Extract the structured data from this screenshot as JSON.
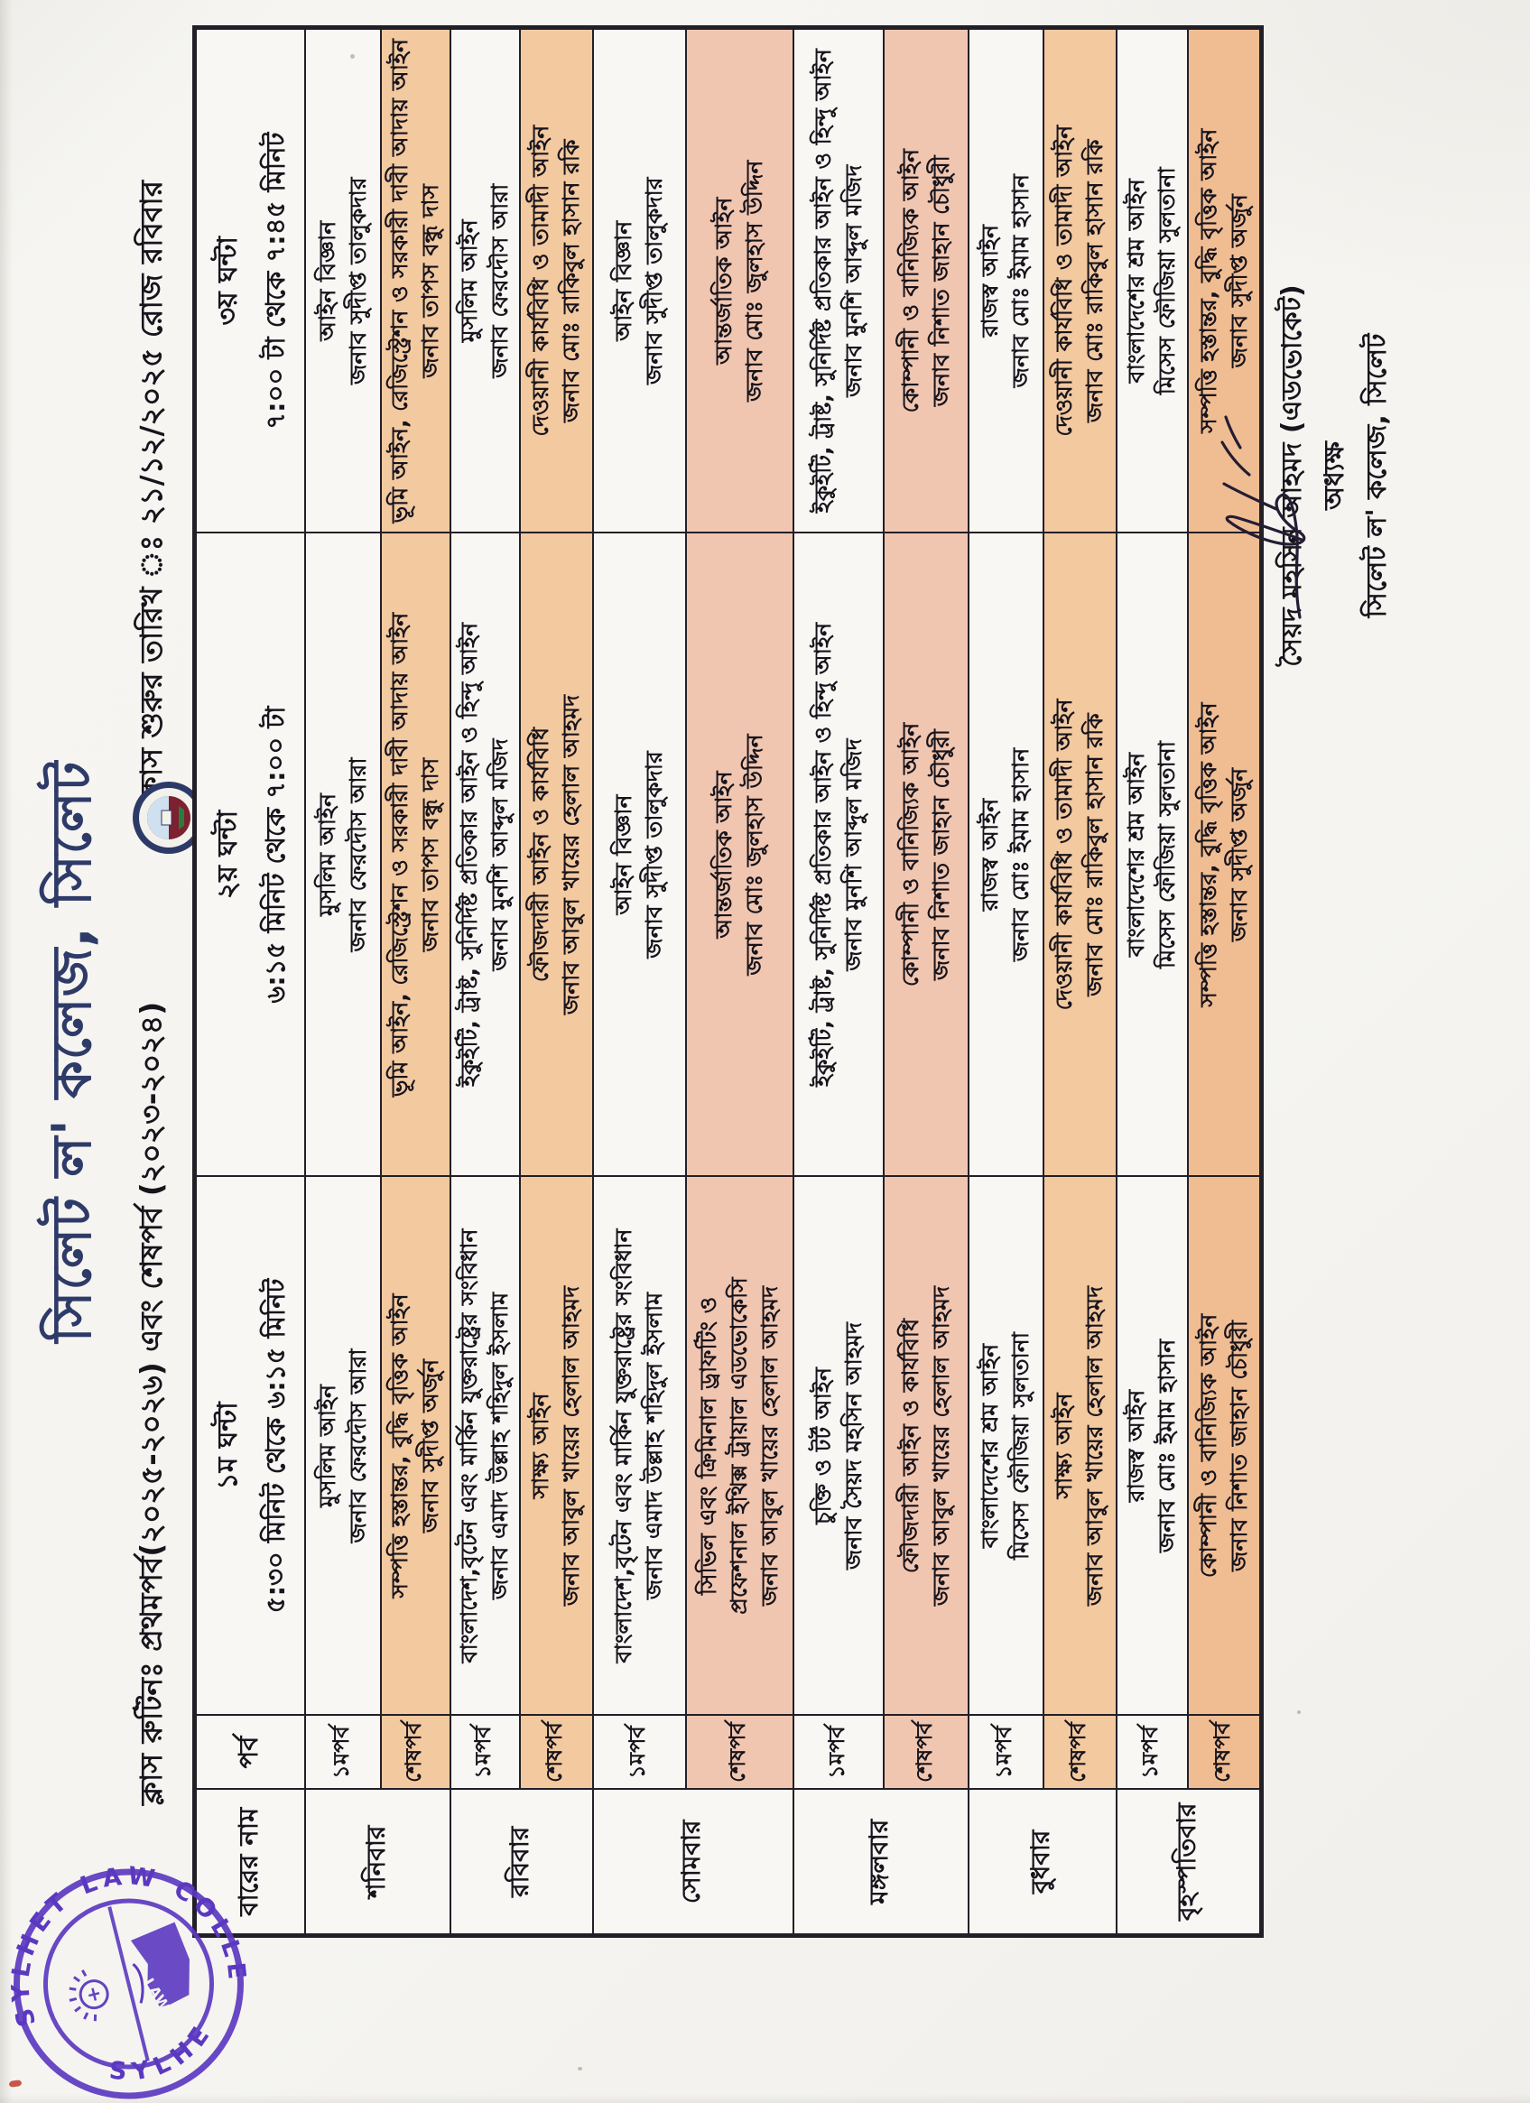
{
  "page": {
    "title": "সিলেট ল' কলেজ, সিলেট",
    "subtitle_left": "ক্লাস রুটিনঃ প্রথমপর্ব(২০২৫-২০২৬) এবং শেষপর্ব (২০২৩-২০২৪)",
    "subtitle_right": "ক্লাস শুরুর তারিখ ঃ ২১/১২/২০২৫ রোজ রবিবার"
  },
  "table": {
    "headers": {
      "day": "বারের নাম",
      "term": "পর্ব",
      "hours": [
        {
          "label": "১ম ঘন্টা",
          "time": "৫:৩০ মিনিট থেকে ৬:১৫ মিনিট"
        },
        {
          "label": "২য় ঘন্টা",
          "time": "৬:১৫ মিনিট থেকে ৭:০০ টা"
        },
        {
          "label": "৩য় ঘন্টা",
          "time": "৭:০০ টা থেকে ৭:৪৫ মিনিট"
        }
      ]
    },
    "rows": [
      {
        "day": "শনিবার",
        "term": "১মপর্ব",
        "tone": "w",
        "height": 84,
        "cells": [
          [
            "মুসলিম আইন",
            "জনাব ফেরদৌস আরা"
          ],
          [
            "মুসলিম আইন",
            "জনাব ফেরদৌস আরা"
          ],
          [
            "আইন বিজ্ঞান",
            "জনাব সুদীপ্ত তালুকদার"
          ]
        ]
      },
      {
        "term": "শেষপর্ব",
        "tone": "p",
        "height": 77,
        "cells": [
          [
            "সম্পত্তি হস্তান্তর, বুদ্ধি বৃত্তিক আইন",
            "জনাব সুদীপ্ত অর্জুন"
          ],
          [
            "ভূমি আইন, রেজিস্ট্রেশন ও সরকারী দাবী আদায় আইন",
            "জনাব তাপস বন্ধু দাস"
          ],
          [
            "ভূমি আইন, রেজিস্ট্রেশন ও সরকারী দাবী আদায় আইন",
            "জনাব তাপস বন্ধু দাস"
          ]
        ]
      },
      {
        "day": "রবিবার",
        "term": "১মপর্ব",
        "tone": "w",
        "height": 77,
        "cells": [
          [
            "বাংলাদেশ,বৃটেন এবং মার্কিন যুক্তরাষ্ট্রের সংবিধান",
            "জনাব এমাদ উল্লাহ শহিদুল ইসলাম"
          ],
          [
            "ইকুইটি, ট্রাষ্ট, সুনির্দিষ্ট প্রতিকার আইন ও হিন্দু আইন",
            "জনাব মুনশি আব্দুল মজিদ"
          ],
          [
            "মুসলিম আইন",
            "জনাব ফেরদৌস আরা"
          ]
        ]
      },
      {
        "term": "শেষপর্ব",
        "tone": "p",
        "height": 81,
        "cells": [
          [
            "সাক্ষ্য আইন",
            "জনাব আবুল খায়ের হেলাল আহমদ"
          ],
          [
            "ফৌজদারী আইন ও কার্যবিধি",
            "জনাব আবুল খায়ের হেলাল আহমদ"
          ],
          [
            "দেওয়ানী কার্যবিধি ও তামাদী আইন",
            "জনাব মোঃ রাকিবুল হাসান রকি"
          ]
        ]
      },
      {
        "day": "সোমবার",
        "term": "১মপর্ব",
        "tone": "w",
        "height": 103,
        "cells": [
          [
            "বাংলাদেশ,বৃটেন এবং মার্কিন যুক্তরাষ্ট্রের সংবিধান",
            "জনাব এমাদ উল্লাহ শহিদুল ইসলাম"
          ],
          [
            "আইন বিজ্ঞান",
            "জনাব সুদীপ্ত তালুকদার"
          ],
          [
            "আইন বিজ্ঞান",
            "জনাব সুদীপ্ত তালুকদার"
          ]
        ]
      },
      {
        "term": "শেষপর্ব",
        "tone": "pk",
        "height": 119,
        "cells": [
          [
            "সিভিল এবং ক্রিমিনাল ড্রাফটিং ও",
            "প্রফেশনাল ইথিক্স ট্রায়াল এডভোকেসি",
            "জনাব আবুল খায়ের হেলাল আহমদ"
          ],
          [
            "আন্তর্জাতিক আইন",
            "জনাব মোঃ জুলহাস উদ্দিন"
          ],
          [
            "আন্তর্জাতিক আইন",
            "জনাব মোঃ জুলহাস উদ্দিন"
          ]
        ]
      },
      {
        "day": "মঙ্গলবার",
        "term": "১মপর্ব",
        "tone": "w",
        "height": 100,
        "cells": [
          [
            "চুক্তি ও টর্ট আইন",
            "জনাব সৈয়দ মহসিন আহমদ"
          ],
          [
            "ইকুইটি, ট্রাষ্ট, সুনির্দিষ্ট প্রতিকার আইন ও হিন্দু আইন",
            "জনাব মুনশি আব্দুল মজিদ"
          ],
          [
            "ইকুইটি, ট্রাষ্ট, সুনির্দিষ্ট প্রতিকার আইন ও হিন্দু আইন",
            "জনাব মুনশি আব্দুল মজিদ"
          ]
        ]
      },
      {
        "term": "শেষপর্ব",
        "tone": "pk",
        "height": 94,
        "cells": [
          [
            "ফৌজদারী আইন ও কার্যবিধি",
            "জনাব আবুল খায়ের হেলাল আহমদ"
          ],
          [
            "কোম্পানী ও বানিজ্যিক আইন",
            "জনাব নিশাত জাহান চৌধুরী"
          ],
          [
            "কোম্পানী ও বানিজ্যিক আইন",
            "জনাব নিশাত জাহান চৌধুরী"
          ]
        ]
      },
      {
        "day": "বুধবার",
        "term": "১মপর্ব",
        "tone": "w",
        "height": 83,
        "cells": [
          [
            "বাংলাদেশের শ্রম আইন",
            "মিসেস ফৌজিয়া সুলতানা"
          ],
          [
            "রাজস্ব আইন",
            "জনাব মোঃ ইমাম হাসান"
          ],
          [
            "রাজস্ব আইন",
            "জনাব মোঃ ইমাম হাসান"
          ]
        ]
      },
      {
        "term": "শেষপর্ব",
        "tone": "p",
        "height": 81,
        "cells": [
          [
            "সাক্ষ্য আইন",
            "জনাব আবুল খায়ের হেলাল আহমদ"
          ],
          [
            "দেওয়ানী কার্যবিধি ও তামাদী আইন",
            "জনাব মোঃ রাকিবুল হাসান রকি"
          ],
          [
            "দেওয়ানী কার্যবিধি ও তামাদী আইন",
            "জনাব মোঃ রাকিবুল হাসান রকি"
          ]
        ]
      },
      {
        "day": "বৃহস্পতিবার",
        "term": "১মপর্ব",
        "tone": "w",
        "height": 79,
        "cells": [
          [
            "রাজস্ব আইন",
            "জনাব মোঃ ইমাম হাসান"
          ],
          [
            "বাংলাদেশের শ্রম আইন",
            "মিসেস ফৌজিয়া সুলতানা"
          ],
          [
            "বাংলাদেশের শ্রম আইন",
            "মিসেস ফৌজিয়া সুলতানা"
          ]
        ]
      },
      {
        "term": "শেষপর্ব",
        "tone": "pd",
        "height": 82,
        "cells": [
          [
            "কোম্পানী ও বানিজ্যিক আইন",
            "জনাব নিশাত জাহান চৌধুরী"
          ],
          [
            "সম্পত্তি হস্তান্তর, বুদ্ধি বৃত্তিক আইন",
            "জনাব সুদীপ্ত অর্জুন"
          ],
          [
            "সম্পত্তি হস্তান্তর, বুদ্ধি বৃত্তিক আইন",
            "জনাব সুদীপ্ত অর্জুন"
          ]
        ]
      }
    ]
  },
  "signature": {
    "name": "সৈয়দ মহসিন আহমদ (এডভোকেট)",
    "title": "অধ্যক্ষ",
    "org": "সিলেট ল' কলেজ, সিলেট"
  },
  "stamp": {
    "text_top": "SYLHET LAW COLLEGE",
    "text_bottom": "SYLHET",
    "emblem_text": "LAW"
  },
  "colors": {
    "title_navy": "#2e3a68",
    "ink_black": "#17141c",
    "row_white": "#f8f7f4",
    "row_peach": "#f3c9a0",
    "row_pink": "#f1c6b0",
    "row_deep_peach": "#f0bd93",
    "table_border": "#221f26",
    "stamp_purple": "#5b38c0"
  }
}
